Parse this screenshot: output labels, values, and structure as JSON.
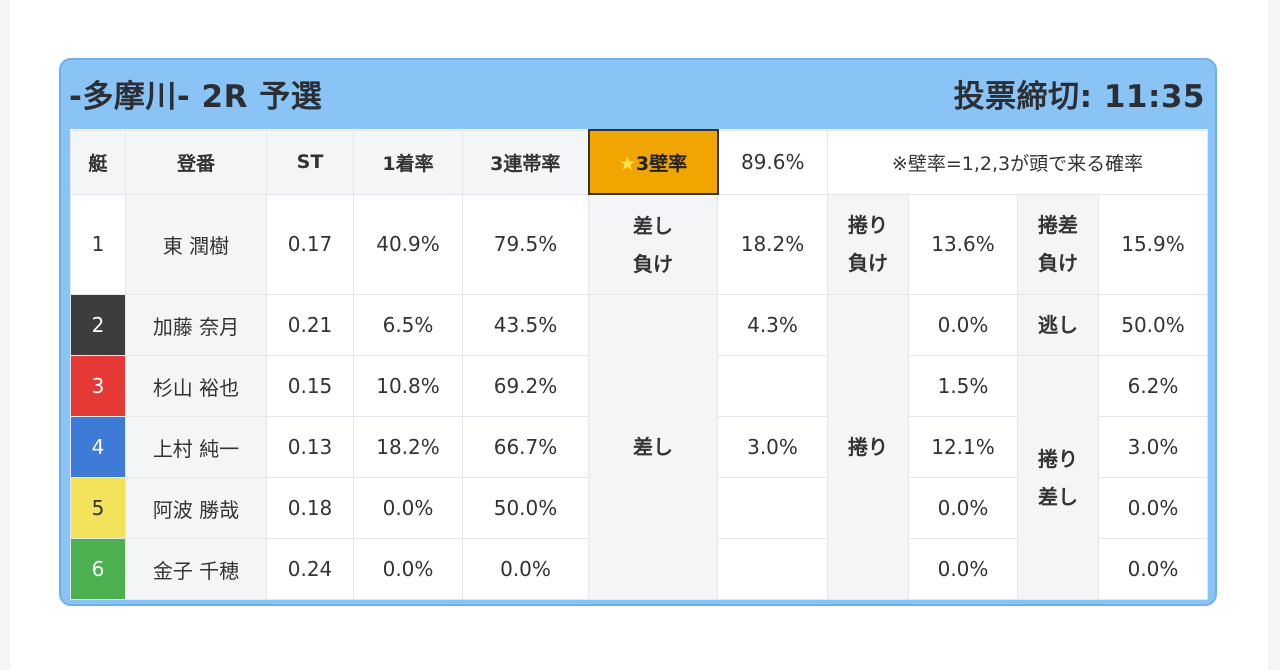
{
  "header": {
    "title": "-多摩川- 2R 予選",
    "deadline_label": "投票締切:",
    "deadline_time": "11:35"
  },
  "table_header": {
    "boat": "艇",
    "registration": "登番",
    "st": "ST",
    "first_rate": "1着率",
    "top3_rate": "3連帯率",
    "wall_rate_label": "3壁率",
    "wall_rate_value": "89.6%",
    "note": "※壁率=1,2,3が頭で来る確率"
  },
  "racers": [
    {
      "no": "1",
      "name": "東 潤樹",
      "st": "0.17",
      "first": "40.9%",
      "top3": "79.5%"
    },
    {
      "no": "2",
      "name": "加藤 奈月",
      "st": "0.21",
      "first": "6.5%",
      "top3": "43.5%"
    },
    {
      "no": "3",
      "name": "杉山 裕也",
      "st": "0.15",
      "first": "10.8%",
      "top3": "69.2%"
    },
    {
      "no": "4",
      "name": "上村 純一",
      "st": "0.13",
      "first": "18.2%",
      "top3": "66.7%"
    },
    {
      "no": "5",
      "name": "阿波 勝哉",
      "st": "0.18",
      "first": "0.0%",
      "top3": "50.0%"
    },
    {
      "no": "6",
      "name": "金子 千穂",
      "st": "0.24",
      "first": "0.0%",
      "top3": "0.0%"
    }
  ],
  "kimarite": {
    "g1": {
      "row1_label": [
        "差し",
        "負け"
      ],
      "row1_value": "18.2%",
      "label": "差し",
      "values": [
        "4.3%",
        "",
        "3.0%",
        "",
        ""
      ]
    },
    "g2": {
      "row1_label": [
        "捲り",
        "負け"
      ],
      "row1_value": "13.6%",
      "label": "捲り",
      "values": [
        "0.0%",
        "1.5%",
        "12.1%",
        "0.0%",
        "0.0%"
      ]
    },
    "g3": {
      "row1_label": [
        "捲差",
        "負け"
      ],
      "row1_value": "15.9%",
      "row2_label": "逃し",
      "row2_value": "50.0%",
      "label": [
        "捲り",
        "差し"
      ],
      "values": [
        "6.2%",
        "3.0%",
        "0.0%",
        "0.0%"
      ]
    }
  },
  "colors": {
    "card_bg": "#8ac4f6",
    "highlight": "#f0a500",
    "boat_1": "#ffffff",
    "boat_2": "#3d3d3d",
    "boat_3": "#e53935",
    "boat_4": "#3e7bd6",
    "boat_5": "#f2e35a",
    "boat_6": "#4caf50"
  }
}
